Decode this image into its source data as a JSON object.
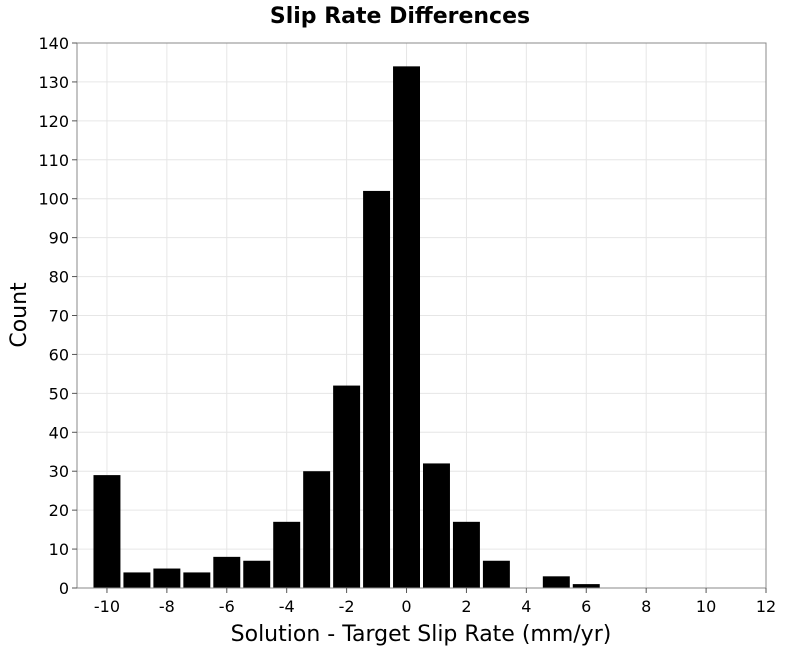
{
  "chart_data": {
    "type": "bar",
    "title": "Slip Rate Differences",
    "xlabel": "Solution - Target Slip Rate (mm/yr)",
    "ylabel": "Count",
    "xlim": [
      -11,
      12
    ],
    "ylim": [
      0,
      140
    ],
    "bin_width": 1,
    "grid": true,
    "x_ticks": [
      -10,
      -8,
      -6,
      -4,
      -2,
      0,
      2,
      4,
      6,
      8,
      10,
      12
    ],
    "y_ticks": [
      0,
      10,
      20,
      30,
      40,
      50,
      60,
      70,
      80,
      90,
      100,
      110,
      120,
      130,
      140
    ],
    "x_tick_labels": [
      "-10",
      "-8",
      "-6",
      "-4",
      "-2",
      "0",
      "2",
      "4",
      "6",
      "8",
      "10",
      "12"
    ],
    "y_tick_labels": [
      "0",
      "10",
      "20",
      "30",
      "40",
      "50",
      "60",
      "70",
      "80",
      "90",
      "100",
      "110",
      "120",
      "130",
      "140"
    ],
    "bar_color": "#000000",
    "x": [
      -10,
      -9,
      -8,
      -7,
      -6,
      -5,
      -4,
      -3,
      -2,
      -1,
      0,
      1,
      2,
      3,
      4,
      5,
      6,
      7,
      8,
      9,
      10
    ],
    "values": [
      29,
      4,
      5,
      4,
      8,
      7,
      17,
      30,
      52,
      102,
      134,
      32,
      17,
      7,
      0,
      3,
      1,
      0,
      0,
      0,
      0
    ]
  }
}
